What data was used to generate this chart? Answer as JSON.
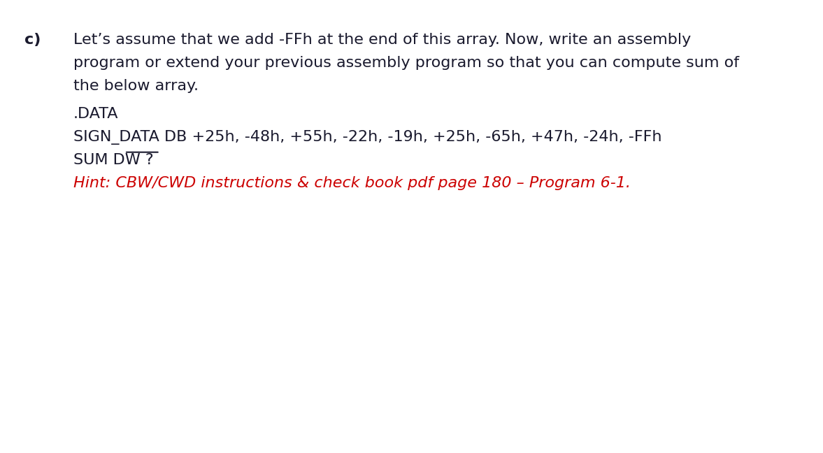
{
  "background_color": "#ffffff",
  "label_c": "c)",
  "line1": "Let’s assume that we add -FFh at the end of this array. Now, write an assembly",
  "line2": "program or extend your previous assembly program so that you can compute sum of",
  "line3": "the below array.",
  "line4": ".DATA",
  "line5": "SIGN_DATA DB +25h, -48h, +55h, -22h, -19h, +25h, -65h, +47h, -24h, -FFh",
  "line6": "SUM DW ?",
  "line7": "Hint: CBW/CWD instructions & check book pdf page 180 – Program 6-1.",
  "main_color": "#1a1a2e",
  "hint_color": "#cc0000",
  "main_fontsize": 16,
  "hint_fontsize": 16
}
